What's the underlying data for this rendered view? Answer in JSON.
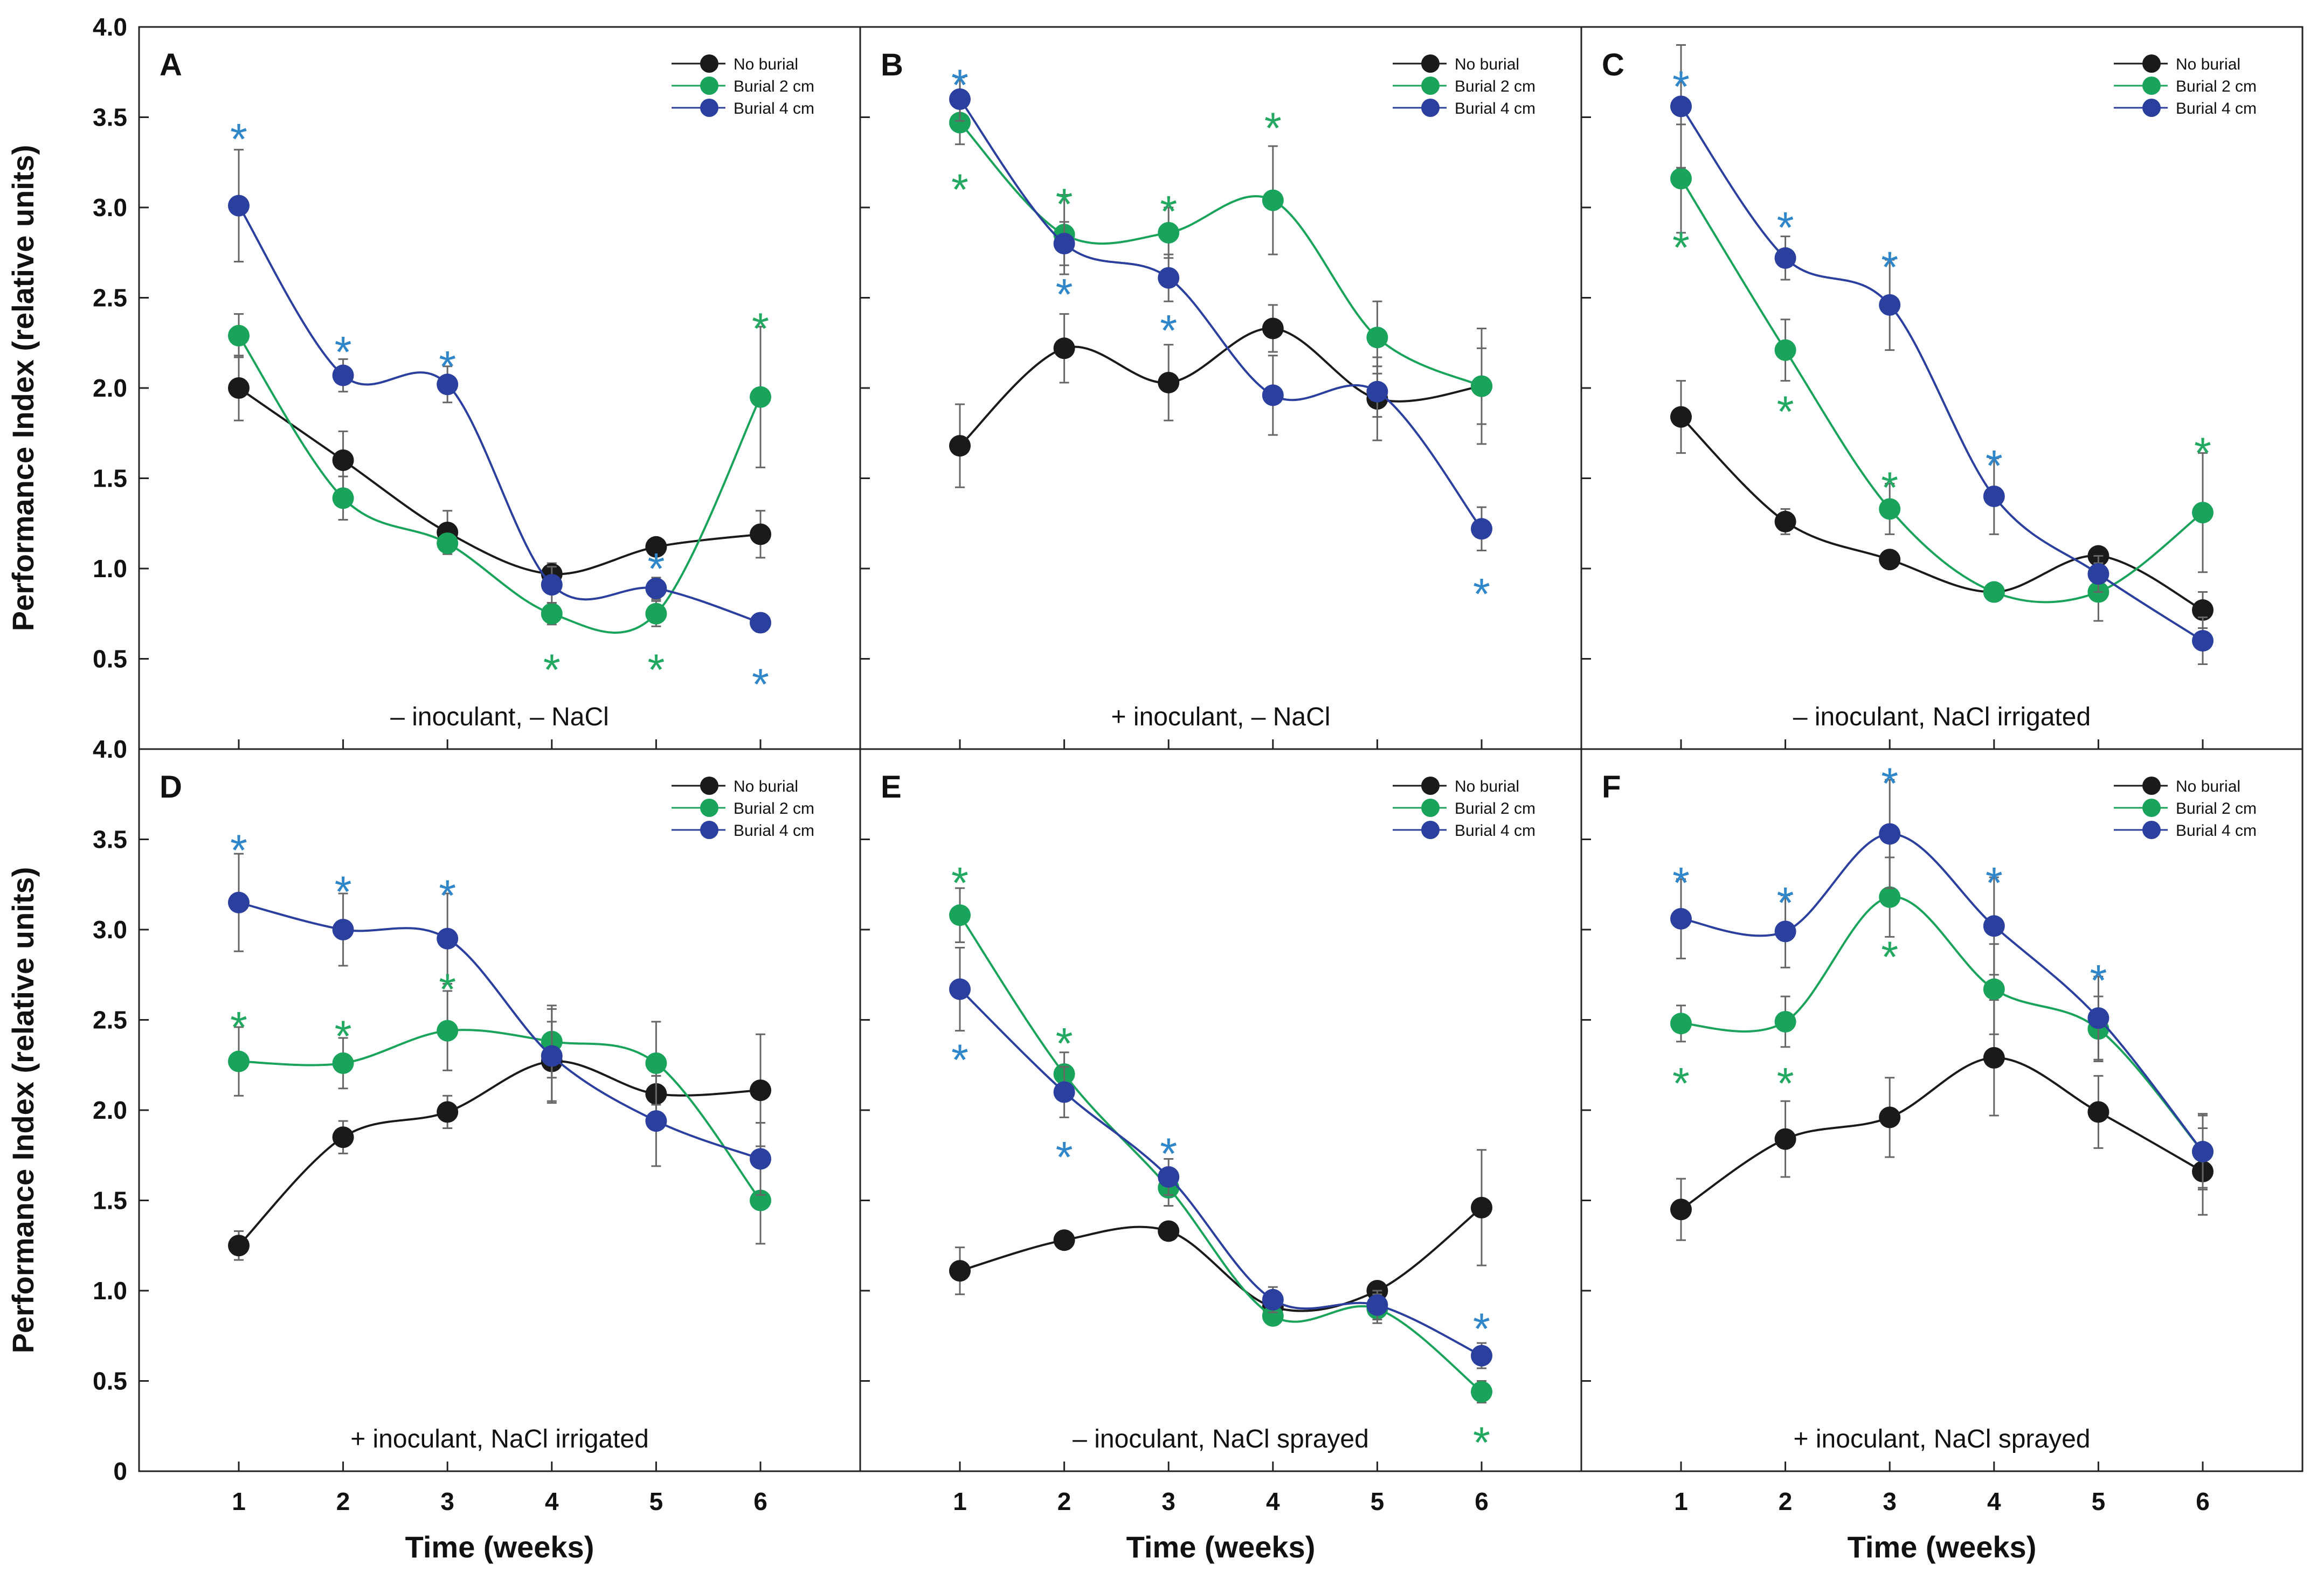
{
  "chart_data": {
    "type": "line",
    "figure_xlabel": "Time (weeks)",
    "figure_ylabel": "Performance Index  (relative units)",
    "x": [
      1,
      2,
      3,
      4,
      5,
      6
    ],
    "xticks": [
      "1",
      "2",
      "3",
      "4",
      "5",
      "6"
    ],
    "ylim": [
      0,
      4.0
    ],
    "yticks_top": [
      "0.5",
      "1.0",
      "1.5",
      "2.0",
      "2.5",
      "3.0",
      "3.5",
      "4.0"
    ],
    "yticks_bottom": [
      "0",
      "0.5",
      "1.0",
      "1.5",
      "2.0",
      "2.5",
      "3.0",
      "3.5",
      "4.0"
    ],
    "legend": [
      "No burial",
      "Burial 2 cm",
      "Burial 4 cm"
    ],
    "colors": {
      "no_burial": "#1a1a1a",
      "burial_2": "#1aa35a",
      "burial_4": "#2b3f9e",
      "star_2": "#22a860",
      "star_4": "#2f86c8",
      "error_bar": "#666666"
    },
    "panels": [
      {
        "letter": "A",
        "condition": "– inoculant, – NaCl",
        "series": [
          {
            "name": "No burial",
            "values": [
              2.0,
              1.6,
              1.2,
              0.97,
              1.12,
              1.19
            ],
            "errors": [
              0.18,
              0.16,
              0.12,
              0.06,
              0.05,
              0.13
            ]
          },
          {
            "name": "Burial 2 cm",
            "values": [
              2.29,
              1.39,
              1.14,
              0.75,
              0.75,
              1.95
            ],
            "errors": [
              0.12,
              0.12,
              0.05,
              0.06,
              0.07,
              0.39
            ]
          },
          {
            "name": "Burial 4 cm",
            "values": [
              3.01,
              2.07,
              2.02,
              0.91,
              0.89,
              0.7
            ],
            "errors": [
              0.31,
              0.09,
              0.1,
              0.1,
              0.06,
              0.05
            ]
          }
        ],
        "stars": [
          {
            "series": "Burial 4 cm",
            "x": 1,
            "value": 3.45
          },
          {
            "series": "Burial 4 cm",
            "x": 2,
            "value": 2.27
          },
          {
            "series": "Burial 4 cm",
            "x": 3,
            "value": 2.19
          },
          {
            "series": "Burial 4 cm",
            "x": 5,
            "value": 1.07
          },
          {
            "series": "Burial 4 cm",
            "x": 6,
            "value": 0.43
          },
          {
            "series": "Burial 2 cm",
            "x": 4,
            "value": 0.51
          },
          {
            "series": "Burial 2 cm",
            "x": 5,
            "value": 0.51
          },
          {
            "series": "Burial 2 cm",
            "x": 6,
            "value": 2.4
          }
        ]
      },
      {
        "letter": "B",
        "condition": "+ inoculant, – NaCl",
        "series": [
          {
            "name": "No burial",
            "values": [
              1.68,
              2.22,
              2.03,
              2.33,
              1.94,
              2.01
            ],
            "errors": [
              0.23,
              0.19,
              0.21,
              0.13,
              0.23,
              0.32
            ]
          },
          {
            "name": "Burial 2 cm",
            "values": [
              3.47,
              2.85,
              2.86,
              3.04,
              2.28,
              2.01
            ],
            "errors": [
              0.12,
              0.22,
              0.14,
              0.3,
              0.2,
              0.21
            ]
          },
          {
            "name": "Burial 4 cm",
            "values": [
              3.6,
              2.8,
              2.61,
              1.96,
              1.98,
              1.22
            ],
            "errors": [
              0.12,
              0.12,
              0.13,
              0.22,
              0.14,
              0.12
            ]
          }
        ],
        "stars": [
          {
            "series": "Burial 4 cm",
            "x": 1,
            "value": 3.75
          },
          {
            "series": "Burial 2 cm",
            "x": 1,
            "value": 3.17
          },
          {
            "series": "Burial 2 cm",
            "x": 2,
            "value": 3.09
          },
          {
            "series": "Burial 4 cm",
            "x": 2,
            "value": 2.59
          },
          {
            "series": "Burial 2 cm",
            "x": 3,
            "value": 3.05
          },
          {
            "series": "Burial 4 cm",
            "x": 3,
            "value": 2.39
          },
          {
            "series": "Burial 2 cm",
            "x": 4,
            "value": 3.51
          },
          {
            "series": "Burial 4 cm",
            "x": 6,
            "value": 0.93
          }
        ]
      },
      {
        "letter": "C",
        "condition": "– inoculant, NaCl irrigated",
        "series": [
          {
            "name": "No burial",
            "values": [
              1.84,
              1.26,
              1.05,
              0.87,
              1.07,
              0.77
            ],
            "errors": [
              0.2,
              0.07,
              0.04,
              0.04,
              0.04,
              0.1
            ]
          },
          {
            "name": "Burial 2 cm",
            "values": [
              3.16,
              2.21,
              1.33,
              0.87,
              0.87,
              1.31
            ],
            "errors": [
              0.3,
              0.17,
              0.14,
              0.04,
              0.16,
              0.33
            ]
          },
          {
            "name": "Burial 4 cm",
            "values": [
              3.56,
              2.72,
              2.46,
              1.4,
              0.97,
              0.6
            ],
            "errors": [
              0.34,
              0.12,
              0.25,
              0.21,
              0.1,
              0.13
            ]
          }
        ],
        "stars": [
          {
            "series": "Burial 4 cm",
            "x": 1,
            "value": 3.74
          },
          {
            "series": "Burial 2 cm",
            "x": 1,
            "value": 2.85
          },
          {
            "series": "Burial 4 cm",
            "x": 2,
            "value": 2.96
          },
          {
            "series": "Burial 2 cm",
            "x": 2,
            "value": 1.94
          },
          {
            "series": "Burial 4 cm",
            "x": 3,
            "value": 2.74
          },
          {
            "series": "Burial 2 cm",
            "x": 3,
            "value": 1.52
          },
          {
            "series": "Burial 4 cm",
            "x": 4,
            "value": 1.64
          },
          {
            "series": "Burial 2 cm",
            "x": 6,
            "value": 1.71
          }
        ]
      },
      {
        "letter": "D",
        "condition": "+ inoculant, NaCl irrigated",
        "series": [
          {
            "name": "No burial",
            "values": [
              1.25,
              1.85,
              1.99,
              2.27,
              2.09,
              2.11
            ],
            "errors": [
              0.08,
              0.09,
              0.09,
              0.22,
              0.1,
              0.31
            ]
          },
          {
            "name": "Burial 2 cm",
            "values": [
              2.27,
              2.26,
              2.44,
              2.38,
              2.26,
              1.5
            ],
            "errors": [
              0.19,
              0.14,
              0.22,
              0.2,
              0.23,
              0.24
            ]
          },
          {
            "name": "Burial 4 cm",
            "values": [
              3.15,
              3.0,
              2.95,
              2.3,
              1.94,
              1.73
            ],
            "errors": [
              0.27,
              0.2,
              0.25,
              0.26,
              0.25,
              0.2
            ]
          }
        ],
        "stars": [
          {
            "series": "Burial 4 cm",
            "x": 1,
            "value": 3.51
          },
          {
            "series": "Burial 2 cm",
            "x": 1,
            "value": 2.53
          },
          {
            "series": "Burial 4 cm",
            "x": 2,
            "value": 3.28
          },
          {
            "series": "Burial 2 cm",
            "x": 2,
            "value": 2.48
          },
          {
            "series": "Burial 4 cm",
            "x": 3,
            "value": 3.26
          },
          {
            "series": "Burial 2 cm",
            "x": 3,
            "value": 2.74
          }
        ]
      },
      {
        "letter": "E",
        "condition": "– inoculant, NaCl sprayed",
        "series": [
          {
            "name": "No burial",
            "values": [
              1.11,
              1.28,
              1.33,
              0.91,
              1.0,
              1.46
            ],
            "errors": [
              0.13,
              0.05,
              0.04,
              0.04,
              0.04,
              0.32
            ]
          },
          {
            "name": "Burial 2 cm",
            "values": [
              3.08,
              2.2,
              1.57,
              0.86,
              0.9,
              0.44
            ],
            "errors": [
              0.15,
              0.12,
              0.1,
              0.05,
              0.08,
              0.06
            ]
          },
          {
            "name": "Burial 4 cm",
            "values": [
              2.67,
              2.1,
              1.63,
              0.95,
              0.92,
              0.64
            ],
            "errors": [
              0.23,
              0.14,
              0.1,
              0.07,
              0.08,
              0.07
            ]
          }
        ],
        "stars": [
          {
            "series": "Burial 2 cm",
            "x": 1,
            "value": 3.33
          },
          {
            "series": "Burial 4 cm",
            "x": 1,
            "value": 2.35
          },
          {
            "series": "Burial 2 cm",
            "x": 2,
            "value": 2.44
          },
          {
            "series": "Burial 4 cm",
            "x": 2,
            "value": 1.81
          },
          {
            "series": "Burial 4 cm",
            "x": 3,
            "value": 1.83
          },
          {
            "series": "Burial 4 cm",
            "x": 6,
            "value": 0.86
          },
          {
            "series": "Burial 2 cm",
            "x": 6,
            "value": 0.23
          }
        ]
      },
      {
        "letter": "F",
        "condition": "+ inoculant, NaCl sprayed",
        "series": [
          {
            "name": "No burial",
            "values": [
              1.45,
              1.84,
              1.96,
              2.29,
              1.99,
              1.66
            ],
            "errors": [
              0.17,
              0.21,
              0.22,
              0.32,
              0.2,
              0.24
            ]
          },
          {
            "name": "Burial 2 cm",
            "values": [
              2.48,
              2.49,
              3.18,
              2.67,
              2.45,
              1.77
            ],
            "errors": [
              0.1,
              0.14,
              0.22,
              0.25,
              0.18,
              0.2
            ]
          },
          {
            "name": "Burial 4 cm",
            "values": [
              3.06,
              2.99,
              3.53,
              3.02,
              2.51,
              1.77
            ],
            "errors": [
              0.22,
              0.2,
              0.3,
              0.27,
              0.23,
              0.21
            ]
          }
        ],
        "stars": [
          {
            "series": "Burial 4 cm",
            "x": 1,
            "value": 3.33
          },
          {
            "series": "Burial 2 cm",
            "x": 1,
            "value": 2.22
          },
          {
            "series": "Burial 4 cm",
            "x": 2,
            "value": 3.22
          },
          {
            "series": "Burial 2 cm",
            "x": 2,
            "value": 2.22
          },
          {
            "series": "Burial 4 cm",
            "x": 3,
            "value": 3.88
          },
          {
            "series": "Burial 2 cm",
            "x": 3,
            "value": 2.92
          },
          {
            "series": "Burial 4 cm",
            "x": 4,
            "value": 3.33
          },
          {
            "series": "Burial 4 cm",
            "x": 5,
            "value": 2.79
          }
        ]
      }
    ]
  }
}
